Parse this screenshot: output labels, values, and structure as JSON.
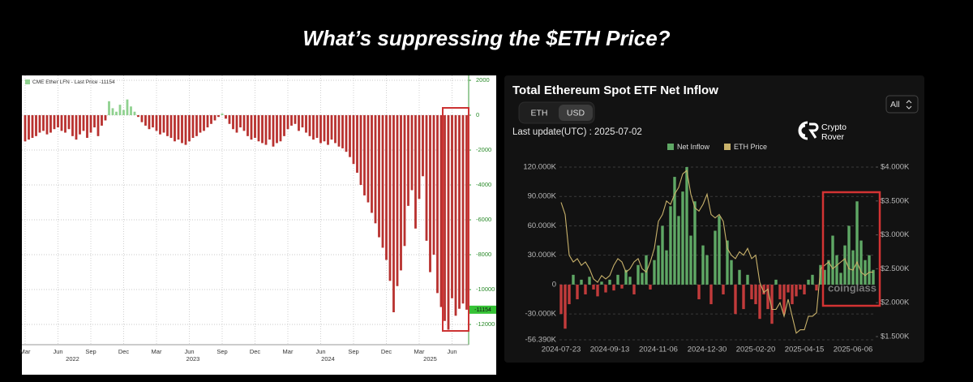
{
  "header": {
    "title": "What’s suppressing the $ETH Price?"
  },
  "chart_data": [
    {
      "type": "bar",
      "legend": "CME Ether LFN - Last Price -11154",
      "last_price_label": "-11154",
      "color": "#b8312f",
      "positive_color": "#8fd18f",
      "grid": true,
      "ylim": [
        -13160,
        2280
      ],
      "yticks": [
        2000,
        0,
        -2000,
        -4000,
        -6000,
        -8000,
        -10000,
        -12000
      ],
      "categories": [
        "Mar",
        null,
        null,
        null,
        null,
        null,
        null,
        null,
        null,
        "Jun",
        null,
        null,
        null,
        null,
        null,
        null,
        null,
        null,
        "Sep",
        null,
        null,
        null,
        null,
        null,
        null,
        null,
        null,
        "Dec",
        null,
        null,
        null,
        null,
        null,
        null,
        null,
        null,
        "Mar",
        null,
        null,
        null,
        null,
        null,
        null,
        null,
        null,
        "Jun",
        null,
        null,
        null,
        null,
        null,
        null,
        null,
        null,
        "Sep",
        null,
        null,
        null,
        null,
        null,
        null,
        null,
        null,
        "Dec",
        null,
        null,
        null,
        null,
        null,
        null,
        null,
        null,
        "Mar",
        null,
        null,
        null,
        null,
        null,
        null,
        null,
        null,
        "Jun",
        null,
        null,
        null,
        null,
        null,
        null,
        null,
        null,
        "Sep",
        null,
        null,
        null,
        null,
        null,
        null,
        null,
        null,
        "Dec",
        null,
        null,
        null,
        null,
        null,
        null,
        null,
        null,
        "Mar",
        null,
        null,
        null,
        null,
        null,
        null,
        null,
        null,
        "Jun",
        null,
        null,
        null,
        null
      ],
      "year_labels": [
        null,
        null,
        null,
        null,
        null,
        null,
        null,
        null,
        null,
        null,
        null,
        null,
        null,
        "2022",
        null,
        null,
        null,
        null,
        null,
        null,
        null,
        null,
        null,
        null,
        null,
        null,
        null,
        null,
        null,
        null,
        null,
        null,
        null,
        null,
        null,
        null,
        null,
        null,
        null,
        null,
        null,
        null,
        null,
        null,
        null,
        null,
        "2023",
        null,
        null,
        null,
        null,
        null,
        null,
        null,
        null,
        null,
        null,
        null,
        null,
        null,
        null,
        null,
        null,
        null,
        null,
        null,
        null,
        null,
        null,
        null,
        null,
        null,
        null,
        null,
        null,
        null,
        null,
        null,
        null,
        null,
        null,
        null,
        null,
        "2024",
        null,
        null,
        null,
        null,
        null,
        null,
        null,
        null,
        null,
        null,
        null,
        null,
        null,
        null,
        null,
        null,
        null,
        null,
        null,
        null,
        null,
        null,
        null,
        null,
        null,
        null,
        null,
        "2025",
        null,
        null,
        null,
        null,
        null,
        null,
        null,
        null,
        null,
        null
      ],
      "values": [
        -1500,
        -1400,
        -1300,
        -1200,
        -1000,
        -900,
        -1100,
        -1000,
        -800,
        -700,
        -900,
        -1000,
        -800,
        -1200,
        -1400,
        -1100,
        -900,
        -1300,
        -1000,
        -700,
        -1200,
        -600,
        -300,
        800,
        400,
        200,
        600,
        300,
        900,
        500,
        200,
        -100,
        -400,
        -600,
        -800,
        -700,
        -900,
        -1100,
        -1000,
        -1200,
        -1300,
        -1500,
        -1400,
        -1600,
        -1700,
        -1500,
        -1300,
        -1200,
        -1000,
        -900,
        -700,
        -500,
        -300,
        -100,
        100,
        -200,
        -500,
        -800,
        -1000,
        -700,
        -900,
        -1200,
        -1400,
        -1300,
        -1500,
        -1600,
        -1700,
        -1400,
        -1800,
        -1600,
        -1500,
        -1200,
        -800,
        -600,
        -500,
        -900,
        -700,
        -1000,
        -1200,
        -1400,
        -1300,
        -1600,
        -1500,
        -1700,
        -1400,
        -1600,
        -1800,
        -1900,
        -2100,
        -2400,
        -2800,
        -3300,
        -4000,
        -4600,
        -5000,
        -5600,
        -6200,
        -7000,
        -7600,
        -8300,
        -9500,
        -11300,
        -9800,
        -8900,
        -7500,
        -5200,
        -4300,
        -6500,
        -4800,
        -3500,
        -7200,
        -9000,
        -8000,
        -10200,
        -11000,
        -11800,
        -12300,
        -10500,
        -11500,
        -11100,
        -10800,
        -11154
      ]
    },
    {
      "type": "bar_line",
      "title": "Total Ethereum Spot ETF Net Inflow",
      "units": [
        "ETH",
        "USD"
      ],
      "active_unit": 1,
      "last_update": "Last update(UTC) : 2025-07-02",
      "range_select": "All",
      "brand": [
        "Crypto",
        "Rover"
      ],
      "watermark": "coinglass",
      "grid": true,
      "ylim": [
        -56390,
        120000
      ],
      "yticks": [
        {
          "value": 120000,
          "label": "120.000K"
        },
        {
          "value": 90000,
          "label": "90.000K"
        },
        {
          "value": 60000,
          "label": "60.000K"
        },
        {
          "value": 30000,
          "label": "30.000K"
        },
        0,
        {
          "value": -30000,
          "label": "-30.000K"
        },
        {
          "value": -56390,
          "label": "-56.390K"
        }
      ],
      "y2lim": [
        1452,
        4000
      ],
      "y2ticks": [
        {
          "value": 4000,
          "label": "$4.000K"
        },
        {
          "value": 3500,
          "label": "$3.500K"
        },
        {
          "value": 3000,
          "label": "$3.000K"
        },
        {
          "value": 2500,
          "label": "$2.500K"
        },
        {
          "value": 2000,
          "label": "$2.000K"
        },
        {
          "value": 1500,
          "label": "$1.500K"
        }
      ],
      "categories": [
        "2024-07-23",
        null,
        null,
        null,
        null,
        null,
        null,
        null,
        null,
        null,
        null,
        null,
        "2024-09-13",
        null,
        null,
        null,
        null,
        null,
        null,
        null,
        null,
        null,
        null,
        null,
        "2024-11-06",
        null,
        null,
        null,
        null,
        null,
        null,
        null,
        null,
        null,
        null,
        null,
        "2024-12-30",
        null,
        null,
        null,
        null,
        null,
        null,
        null,
        null,
        null,
        null,
        null,
        "2025-02-20",
        null,
        null,
        null,
        null,
        null,
        null,
        null,
        null,
        null,
        null,
        null,
        "2025-04-15",
        null,
        null,
        null,
        null,
        null,
        null,
        null,
        null,
        null,
        null,
        null,
        "2025-06-06",
        null,
        null,
        null,
        null,
        null
      ],
      "series": [
        {
          "name": "Net Inflow",
          "color": "#5fa865",
          "negative_color": "#c23b3b",
          "values": [
            -30000,
            -45000,
            -20000,
            10000,
            -15000,
            5000,
            -10000,
            8000,
            -5000,
            -12000,
            3000,
            -8000,
            5000,
            -6000,
            10000,
            -4000,
            15000,
            8000,
            -10000,
            20000,
            12000,
            30000,
            -5000,
            25000,
            40000,
            60000,
            35000,
            80000,
            110000,
            70000,
            95000,
            120000,
            50000,
            85000,
            -15000,
            40000,
            30000,
            -20000,
            55000,
            70000,
            -10000,
            45000,
            25000,
            -30000,
            15000,
            -25000,
            10000,
            -15000,
            -20000,
            -35000,
            -10000,
            -25000,
            -40000,
            5000,
            -15000,
            -30000,
            -8000,
            -20000,
            -12000,
            -5000,
            -10000,
            5000,
            10000,
            -6000,
            20000,
            15000,
            25000,
            50000,
            30000,
            12000,
            40000,
            60000,
            35000,
            85000,
            45000,
            25000,
            30000,
            15000
          ]
        },
        {
          "name": "ETH Price",
          "color": "#c9b26b",
          "axis": "y2",
          "values": [
            3480,
            3300,
            2700,
            2600,
            2650,
            2550,
            2600,
            2500,
            2350,
            2300,
            2400,
            2350,
            2400,
            2550,
            2650,
            2600,
            2450,
            2500,
            2600,
            2650,
            2500,
            2450,
            2600,
            2800,
            3200,
            3300,
            3500,
            3450,
            3600,
            3700,
            3900,
            3950,
            3600,
            3400,
            3350,
            3450,
            3600,
            3300,
            3250,
            3300,
            3200,
            2800,
            2700,
            2650,
            2750,
            2700,
            2800,
            2650,
            2700,
            2300,
            2150,
            2200,
            1900,
            1900,
            2000,
            1800,
            2050,
            1800,
            1550,
            1600,
            1600,
            1800,
            1800,
            1850,
            2500,
            2550,
            2600,
            2500,
            2550,
            2600,
            2650,
            2500,
            2480,
            2600,
            2450,
            2400,
            2450,
            2450
          ]
        }
      ]
    }
  ]
}
